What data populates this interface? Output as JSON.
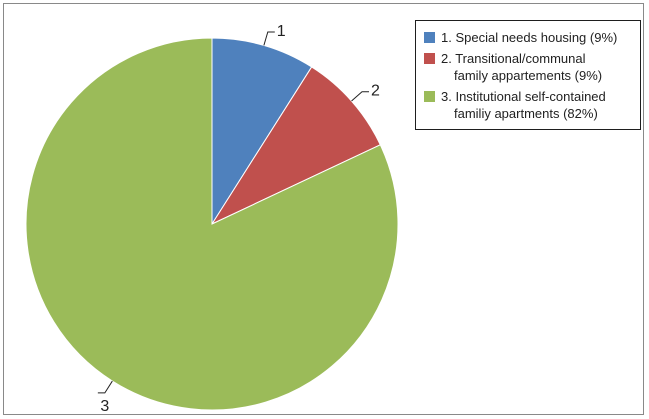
{
  "chart_data": {
    "type": "pie",
    "start_angle_deg": 0,
    "direction": "clockwise",
    "legend_position": "top-right",
    "slices": [
      {
        "label": "1",
        "lines": [
          "1. Special needs housing (9%)"
        ],
        "value": 9,
        "color": "#4f81bd"
      },
      {
        "label": "2",
        "lines": [
          "2. Transitional/communal",
          "family appartements (9%)"
        ],
        "value": 9,
        "color": "#c0504d"
      },
      {
        "label": "3",
        "lines": [
          "3. Institutional self-contained",
          "familiy apartments (82%)"
        ],
        "value": 82,
        "color": "#9bbb59"
      }
    ]
  }
}
